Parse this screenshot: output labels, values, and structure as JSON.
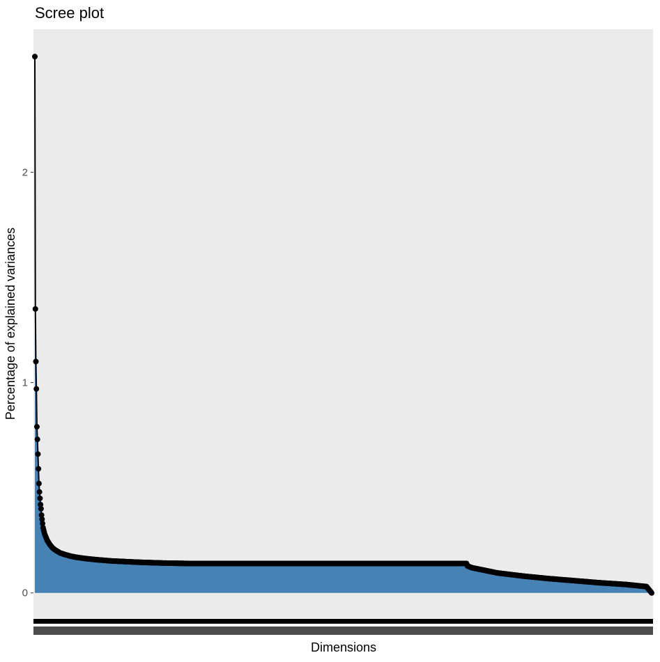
{
  "chart_data": {
    "type": "area",
    "title": "Scree plot",
    "xlabel": "Dimensions",
    "ylabel": "Percentage of explained variances",
    "y_ticks": [
      "0",
      "1",
      "2"
    ],
    "ylim": [
      -0.12,
      2.68
    ],
    "n_dimensions": 1200,
    "grid": false,
    "legend": "none",
    "colors": {
      "fill": "#4682b4",
      "line": "#000000",
      "panel": "#ebebeb",
      "axis_text": "#4d4d4d"
    },
    "series": [
      {
        "x": [
          1,
          2,
          3,
          4,
          5,
          6,
          7,
          8,
          9,
          10,
          11,
          12,
          13,
          14,
          15,
          16,
          17,
          18,
          19,
          20,
          25,
          30,
          35,
          40,
          50,
          60,
          70,
          80,
          100,
          120,
          150,
          200,
          250,
          300,
          350,
          400,
          500,
          600,
          700,
          800,
          840,
          841,
          842,
          845,
          850,
          870,
          900,
          950,
          1000,
          1050,
          1100,
          1150,
          1190,
          1200
        ],
        "y": [
          2.55,
          1.35,
          1.1,
          0.97,
          0.79,
          0.73,
          0.66,
          0.59,
          0.52,
          0.48,
          0.45,
          0.42,
          0.4,
          0.37,
          0.35,
          0.33,
          0.31,
          0.3,
          0.29,
          0.28,
          0.25,
          0.23,
          0.215,
          0.205,
          0.19,
          0.182,
          0.175,
          0.17,
          0.163,
          0.158,
          0.152,
          0.146,
          0.142,
          0.14,
          0.14,
          0.14,
          0.14,
          0.14,
          0.14,
          0.14,
          0.14,
          0.135,
          0.128,
          0.125,
          0.12,
          0.11,
          0.095,
          0.08,
          0.068,
          0.058,
          0.048,
          0.04,
          0.03,
          0.0
        ]
      }
    ]
  }
}
